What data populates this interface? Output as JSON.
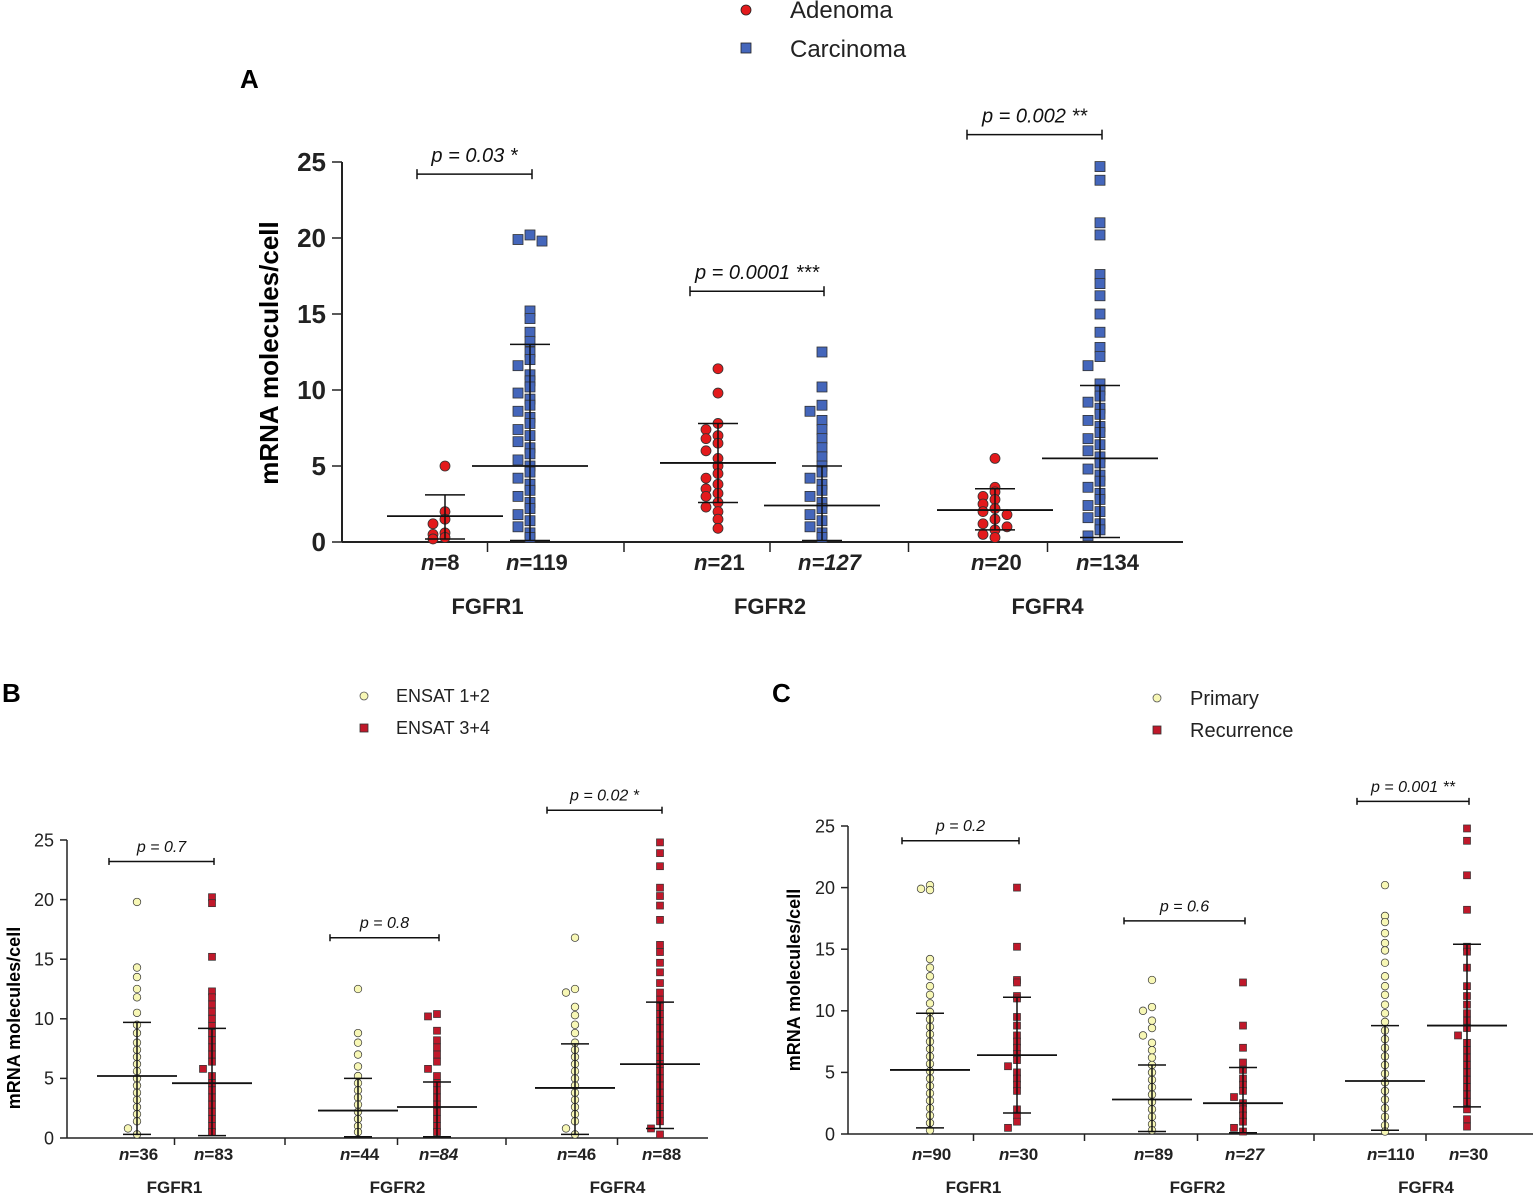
{
  "figure": {
    "colors": {
      "adenoma": "#e31a1c",
      "carcinoma": "#4466bb",
      "light_group": "#f7f7b5",
      "dark_group": "#c0182a",
      "axis": "#222222"
    }
  },
  "chart_data": [
    {
      "panel": "A",
      "type": "scatter",
      "ylabel": "mRNA molecules/cell",
      "ylim": [
        0,
        25
      ],
      "yticks": [
        0,
        5,
        10,
        15,
        20,
        25
      ],
      "legend": [
        "Adenoma",
        "Carcinoma"
      ],
      "legend_position": "top-center",
      "genes": [
        "FGFR1",
        "FGFR2",
        "FGFR4"
      ],
      "groups": [
        {
          "gene": "FGFR1",
          "series": "Adenoma",
          "n_prefix": "n",
          "n_value": "=8",
          "mean": 1.7,
          "sd": [
            0.2,
            3.1
          ],
          "sample_values": [
            5.0,
            2.0,
            1.5,
            1.2,
            0.6,
            0.5,
            0.3,
            0.2
          ]
        },
        {
          "gene": "FGFR1",
          "series": "Carcinoma",
          "n_prefix": "n",
          "n_value": "=119",
          "mean": 5.0,
          "sd": [
            0.1,
            13.0
          ],
          "sample_values": [
            20.2,
            19.8,
            19.9,
            15.2,
            14.7,
            13.8,
            13.2,
            12.5,
            12.0,
            11.6,
            11.0,
            10.6,
            10.2,
            9.8,
            9.4,
            9.0,
            8.6,
            8.2,
            7.8,
            7.4,
            7.0,
            6.6,
            6.2,
            5.8,
            5.4,
            5.0,
            4.6,
            4.2,
            3.8,
            3.4,
            3.0,
            2.6,
            2.2,
            1.8,
            1.4,
            1.0,
            0.6,
            0.3
          ]
        },
        {
          "gene": "FGFR2",
          "series": "Adenoma",
          "n_prefix": "n",
          "n_value": "=21",
          "mean": 5.2,
          "sd": [
            2.6,
            7.8
          ],
          "sample_values": [
            11.4,
            9.8,
            7.8,
            7.4,
            7.0,
            6.8,
            6.5,
            6.0,
            5.5,
            5.0,
            4.5,
            4.2,
            3.8,
            3.5,
            3.2,
            3.0,
            2.6,
            2.3,
            2.0,
            1.5,
            0.9
          ]
        },
        {
          "gene": "FGFR2",
          "series": "Carcinoma",
          "n_prefix": "n",
          "n_value": "=127",
          "mean_style_italic": true,
          "mean": 2.4,
          "sd": [
            0.1,
            5.0
          ],
          "sample_values": [
            12.5,
            10.2,
            9.0,
            8.6,
            8.0,
            7.4,
            6.8,
            6.2,
            5.6,
            5.0,
            4.6,
            4.2,
            3.8,
            3.4,
            3.0,
            2.6,
            2.2,
            1.8,
            1.4,
            1.0,
            0.6,
            0.3
          ]
        },
        {
          "gene": "FGFR4",
          "series": "Adenoma",
          "n_prefix": "n",
          "n_value": "=20",
          "mean": 2.1,
          "sd": [
            0.8,
            3.5
          ],
          "sample_values": [
            5.5,
            3.6,
            3.3,
            3.0,
            2.8,
            2.5,
            2.2,
            2.0,
            1.8,
            1.5,
            1.2,
            1.0,
            0.8,
            0.5,
            0.3
          ]
        },
        {
          "gene": "FGFR4",
          "series": "Carcinoma",
          "n_prefix": "n",
          "n_value": "=134",
          "mean": 5.5,
          "sd": [
            0.3,
            10.3
          ],
          "sample_values": [
            24.7,
            23.8,
            21.0,
            20.2,
            17.6,
            17.0,
            16.2,
            15.0,
            13.8,
            12.8,
            12.2,
            11.6,
            10.4,
            10.0,
            9.6,
            9.2,
            8.8,
            8.4,
            8.0,
            7.6,
            7.2,
            6.8,
            6.4,
            6.0,
            5.6,
            5.2,
            4.8,
            4.4,
            4.0,
            3.6,
            3.2,
            2.8,
            2.4,
            2.0,
            1.6,
            1.2,
            0.8,
            0.4
          ]
        }
      ],
      "comparisons": [
        {
          "gene": "FGFR1",
          "label": "p = 0.03 *",
          "y": 24.2
        },
        {
          "gene": "FGFR2",
          "label": "p = 0.0001 ***",
          "y": 16.5
        },
        {
          "gene": "FGFR4",
          "label": "p = 0.002 **",
          "y": 26.8
        }
      ]
    },
    {
      "panel": "B",
      "type": "scatter",
      "ylabel": "mRNA molecules/cell",
      "ylim": [
        0,
        25
      ],
      "yticks": [
        0,
        5,
        10,
        15,
        20,
        25
      ],
      "legend": [
        "ENSAT 1+2",
        "ENSAT 3+4"
      ],
      "legend_position": "top-center",
      "genes": [
        "FGFR1",
        "FGFR2",
        "FGFR4"
      ],
      "groups": [
        {
          "gene": "FGFR1",
          "series": "ENSAT 1+2",
          "n_prefix": "n",
          "n_value": "=36",
          "mean": 5.2,
          "sd": [
            0.3,
            9.7
          ],
          "sample_values": [
            19.8,
            14.3,
            13.5,
            12.5,
            11.8,
            10.5,
            9.5,
            8.8,
            8.0,
            7.4,
            6.8,
            6.2,
            5.6,
            5.0,
            4.4,
            3.8,
            3.2,
            2.6,
            2.0,
            1.4,
            0.8,
            0.3
          ]
        },
        {
          "gene": "FGFR1",
          "series": "ENSAT 3+4",
          "n_prefix": "n",
          "n_value": "=83",
          "mean": 4.6,
          "sd": [
            0.2,
            9.2
          ],
          "sample_values": [
            20.2,
            19.7,
            15.2,
            12.3,
            11.8,
            11.2,
            10.6,
            10.0,
            9.4,
            8.8,
            8.2,
            7.6,
            7.0,
            6.4,
            5.8,
            5.2,
            4.6,
            4.0,
            3.4,
            2.8,
            2.2,
            1.6,
            1.0,
            0.5
          ]
        },
        {
          "gene": "FGFR2",
          "series": "ENSAT 1+2",
          "n_prefix": "n",
          "n_value": "=44",
          "mean": 2.3,
          "sd": [
            0.1,
            5.0
          ],
          "sample_values": [
            12.5,
            8.8,
            8.0,
            7.0,
            6.0,
            5.2,
            4.6,
            4.0,
            3.4,
            2.8,
            2.2,
            1.6,
            1.0,
            0.5
          ]
        },
        {
          "gene": "FGFR2",
          "series": "ENSAT 3+4",
          "n_prefix": "n",
          "n_value": "=84",
          "mean_style_italic": true,
          "mean": 2.6,
          "sd": [
            0.1,
            4.7
          ],
          "sample_values": [
            10.4,
            10.2,
            9.0,
            8.2,
            7.6,
            7.0,
            6.4,
            5.8,
            5.2,
            4.6,
            4.0,
            3.4,
            2.8,
            2.2,
            1.6,
            1.0,
            0.5
          ]
        },
        {
          "gene": "FGFR4",
          "series": "ENSAT 1+2",
          "n_prefix": "n",
          "n_value": "=46",
          "mean": 4.2,
          "sd": [
            0.3,
            7.9
          ],
          "sample_values": [
            16.8,
            12.5,
            12.2,
            11.0,
            10.3,
            9.5,
            8.8,
            8.0,
            7.4,
            6.8,
            6.2,
            5.6,
            5.0,
            4.4,
            3.8,
            3.2,
            2.6,
            2.0,
            1.4,
            0.8,
            0.3
          ]
        },
        {
          "gene": "FGFR4",
          "series": "ENSAT 3+4",
          "n_prefix": "n",
          "n_value": "=88",
          "mean": 6.2,
          "sd": [
            0.8,
            11.4
          ],
          "sample_values": [
            24.8,
            23.9,
            22.8,
            21.0,
            20.3,
            19.5,
            18.3,
            16.2,
            15.6,
            14.7,
            13.9,
            13.0,
            12.2,
            11.6,
            11.0,
            10.4,
            9.8,
            9.2,
            8.6,
            8.0,
            7.4,
            6.8,
            6.2,
            5.6,
            5.0,
            4.4,
            3.8,
            3.2,
            2.6,
            2.0,
            1.4,
            0.8,
            0.3
          ]
        }
      ],
      "comparisons": [
        {
          "gene": "FGFR1",
          "label": "p = 0.7",
          "y": 23.2
        },
        {
          "gene": "FGFR2",
          "label": "p = 0.8",
          "y": 16.8
        },
        {
          "gene": "FGFR4",
          "label": "p = 0.02 *",
          "y": 27.5
        }
      ]
    },
    {
      "panel": "C",
      "type": "scatter",
      "ylabel": "mRNA molecules/cell",
      "ylim": [
        0,
        25
      ],
      "yticks": [
        0,
        5,
        10,
        15,
        20,
        25
      ],
      "legend": [
        "Primary",
        "Recurrence"
      ],
      "legend_position": "top-center",
      "genes": [
        "FGFR1",
        "FGFR2",
        "FGFR4"
      ],
      "groups": [
        {
          "gene": "FGFR1",
          "series": "Primary",
          "n_prefix": "n",
          "n_value": "=90",
          "mean": 5.2,
          "sd": [
            0.5,
            9.8
          ],
          "sample_values": [
            20.2,
            19.8,
            19.9,
            14.2,
            13.5,
            12.8,
            12.0,
            11.3,
            10.6,
            9.9,
            9.3,
            8.7,
            8.1,
            7.5,
            6.9,
            6.3,
            5.7,
            5.1,
            4.5,
            3.9,
            3.3,
            2.7,
            2.1,
            1.5,
            0.9,
            0.3
          ]
        },
        {
          "gene": "FGFR1",
          "series": "Recurrence",
          "n_prefix": "n",
          "n_value": "=30",
          "mean": 6.4,
          "sd": [
            1.7,
            11.1
          ],
          "sample_values": [
            20.0,
            15.2,
            12.5,
            12.3,
            11.2,
            11.0,
            9.5,
            8.8,
            8.0,
            7.5,
            7.0,
            6.5,
            6.0,
            5.5,
            5.0,
            4.5,
            4.0,
            3.5,
            2.0,
            1.5,
            1.0,
            0.5
          ]
        },
        {
          "gene": "FGFR2",
          "series": "Primary",
          "n_prefix": "n",
          "n_value": "=89",
          "mean": 2.8,
          "sd": [
            0.2,
            5.6
          ],
          "sample_values": [
            12.5,
            10.3,
            10.0,
            9.2,
            8.6,
            8.0,
            7.4,
            6.8,
            6.2,
            5.6,
            5.0,
            4.4,
            3.8,
            3.2,
            2.6,
            2.0,
            1.4,
            0.8,
            0.3
          ]
        },
        {
          "gene": "FGFR2",
          "series": "Recurrence",
          "n_prefix": "n",
          "n_value": "=27",
          "mean_style_italic": true,
          "mean": 2.5,
          "sd": [
            0.1,
            5.4
          ],
          "sample_values": [
            12.3,
            8.8,
            7.0,
            5.8,
            5.2,
            4.5,
            4.0,
            3.5,
            3.0,
            2.5,
            2.0,
            1.5,
            1.0,
            0.5,
            0.2
          ]
        },
        {
          "gene": "FGFR4",
          "series": "Primary",
          "n_prefix": "n",
          "n_value": "=110",
          "mean": 4.3,
          "sd": [
            0.3,
            8.8
          ],
          "sample_values": [
            20.2,
            17.7,
            17.2,
            16.3,
            15.5,
            14.9,
            13.9,
            12.8,
            12.0,
            11.3,
            10.5,
            9.8,
            9.1,
            8.4,
            7.7,
            7.0,
            6.3,
            5.6,
            4.9,
            4.2,
            3.5,
            2.8,
            2.1,
            1.4,
            0.7,
            0.2
          ]
        },
        {
          "gene": "FGFR4",
          "series": "Recurrence",
          "n_prefix": "n",
          "n_value": "=30",
          "mean": 8.8,
          "sd": [
            2.2,
            15.4
          ],
          "sample_values": [
            24.8,
            23.8,
            21.0,
            18.2,
            15.2,
            14.8,
            13.5,
            12.0,
            11.2,
            10.5,
            9.8,
            9.2,
            8.6,
            8.0,
            7.4,
            6.8,
            6.2,
            5.6,
            5.0,
            4.4,
            3.8,
            3.2,
            2.6,
            2.0,
            1.2,
            0.6
          ]
        }
      ],
      "comparisons": [
        {
          "gene": "FGFR1",
          "label": "p = 0.2",
          "y": 23.8
        },
        {
          "gene": "FGFR2",
          "label": "p = 0.6",
          "y": 17.3
        },
        {
          "gene": "FGFR4",
          "label": "p = 0.001 **",
          "y": 27.0
        }
      ]
    }
  ]
}
